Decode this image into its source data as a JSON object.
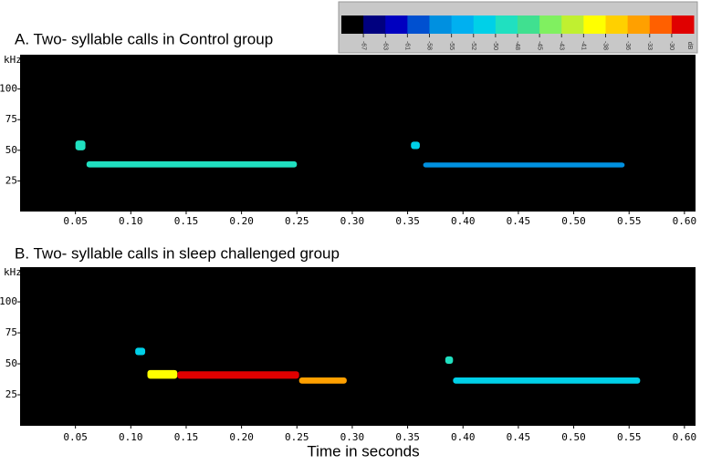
{
  "colorbar": {
    "colors": [
      "#000000",
      "#00007f",
      "#0000c0",
      "#0050d0",
      "#0090e0",
      "#00b0f0",
      "#00d0e8",
      "#20e0c0",
      "#40e090",
      "#80f060",
      "#c0f030",
      "#ffff00",
      "#ffd000",
      "#ffa000",
      "#ff6000",
      "#e00000"
    ],
    "ticks": [
      -67,
      -63,
      -61,
      -58,
      -55,
      -52,
      -50,
      -48,
      -45,
      -43,
      -41,
      -38,
      -36,
      -33,
      -30
    ],
    "unit": "dB"
  },
  "chart_data": [
    {
      "type": "spectrogram",
      "title": "A. Two- syllable calls in Control group",
      "y_label": "kHz",
      "xlim": [
        0,
        0.61
      ],
      "ylim": [
        0,
        128
      ],
      "xticks": [
        0.05,
        {
          "value": 0.1,
          "label": "0.10"
        },
        0.15,
        {
          "value": 0.2,
          "label": "0.20"
        },
        0.25,
        {
          "value": 0.3,
          "label": "0.30"
        },
        0.35,
        {
          "value": 0.4,
          "label": "0.40"
        },
        0.45,
        {
          "value": 0.5,
          "label": "0.50"
        },
        0.55,
        {
          "value": 0.6,
          "label": "0.60"
        }
      ],
      "yticks": [
        25,
        50,
        75,
        100
      ],
      "syllables": [
        {
          "start": 0.05,
          "end": 0.059,
          "freq_low": 50,
          "freq_high": 58,
          "db": -49
        },
        {
          "start": 0.06,
          "end": 0.25,
          "freq_low": 36,
          "freq_high": 41,
          "db": -50
        },
        {
          "start": 0.353,
          "end": 0.361,
          "freq_low": 51,
          "freq_high": 57,
          "db": -52
        },
        {
          "start": 0.364,
          "end": 0.546,
          "freq_low": 36,
          "freq_high": 40,
          "db": -57
        }
      ]
    },
    {
      "type": "spectrogram",
      "title": "B. Two- syllable calls in sleep challenged group",
      "y_label": "kHz",
      "x_label": "Time in seconds",
      "xlim": [
        0,
        0.61
      ],
      "ylim": [
        0,
        128
      ],
      "xticks": [
        0.05,
        {
          "value": 0.1,
          "label": "0.10"
        },
        0.15,
        {
          "value": 0.2,
          "label": "0.20"
        },
        0.25,
        {
          "value": 0.3,
          "label": "0.30"
        },
        0.35,
        {
          "value": 0.4,
          "label": "0.40"
        },
        0.45,
        {
          "value": 0.5,
          "label": "0.50"
        },
        0.55,
        {
          "value": 0.6,
          "label": "0.60"
        }
      ],
      "yticks": [
        25,
        50,
        75,
        100
      ],
      "syllables": [
        {
          "start": 0.104,
          "end": 0.113,
          "freq_low": 57,
          "freq_high": 63,
          "db": -52
        },
        {
          "start": 0.115,
          "end": 0.142,
          "freq_low": 38,
          "freq_high": 45,
          "db": -40
        },
        {
          "start": 0.142,
          "end": 0.252,
          "freq_low": 38,
          "freq_high": 44,
          "db": -30
        },
        {
          "start": 0.252,
          "end": 0.295,
          "freq_low": 34,
          "freq_high": 39,
          "db": -35
        },
        {
          "start": 0.384,
          "end": 0.391,
          "freq_low": 50,
          "freq_high": 56,
          "db": -50
        },
        {
          "start": 0.391,
          "end": 0.56,
          "freq_low": 34,
          "freq_high": 39,
          "db": -52
        }
      ]
    }
  ]
}
